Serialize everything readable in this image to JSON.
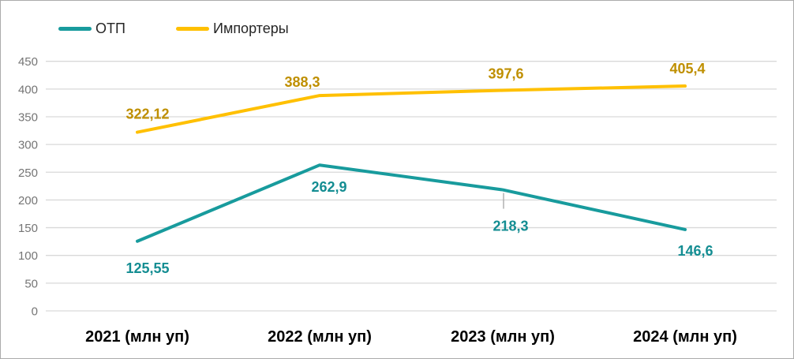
{
  "chart_data": {
    "type": "line",
    "categories": [
      "2021 (млн уп)",
      "2022 (млн уп)",
      "2023 (млн уп)",
      "2024 (млн уп)"
    ],
    "series": [
      {
        "name": "ОТП",
        "values": [
          125.55,
          262.9,
          218.3,
          146.6
        ],
        "labels": [
          "125,55",
          "262,9",
          "218,3",
          "146,6"
        ],
        "color": "#189b9d",
        "label_color": "#148d92"
      },
      {
        "name": "Импортеры",
        "values": [
          322.12,
          388.3,
          397.6,
          405.4
        ],
        "labels": [
          "322,12",
          "388,3",
          "397,6",
          "405,4"
        ],
        "color": "#ffc000",
        "label_color": "#bf8f00"
      }
    ],
    "y_ticks": [
      450,
      400,
      350,
      300,
      250,
      200,
      150,
      100,
      50,
      0
    ],
    "ylim": [
      0,
      450
    ],
    "grid": true,
    "gridline_color": "#d9d9d9",
    "axis_tick_color": "#757575",
    "leader_line_color": "#a6a6a6",
    "legend_position": "top-left"
  }
}
